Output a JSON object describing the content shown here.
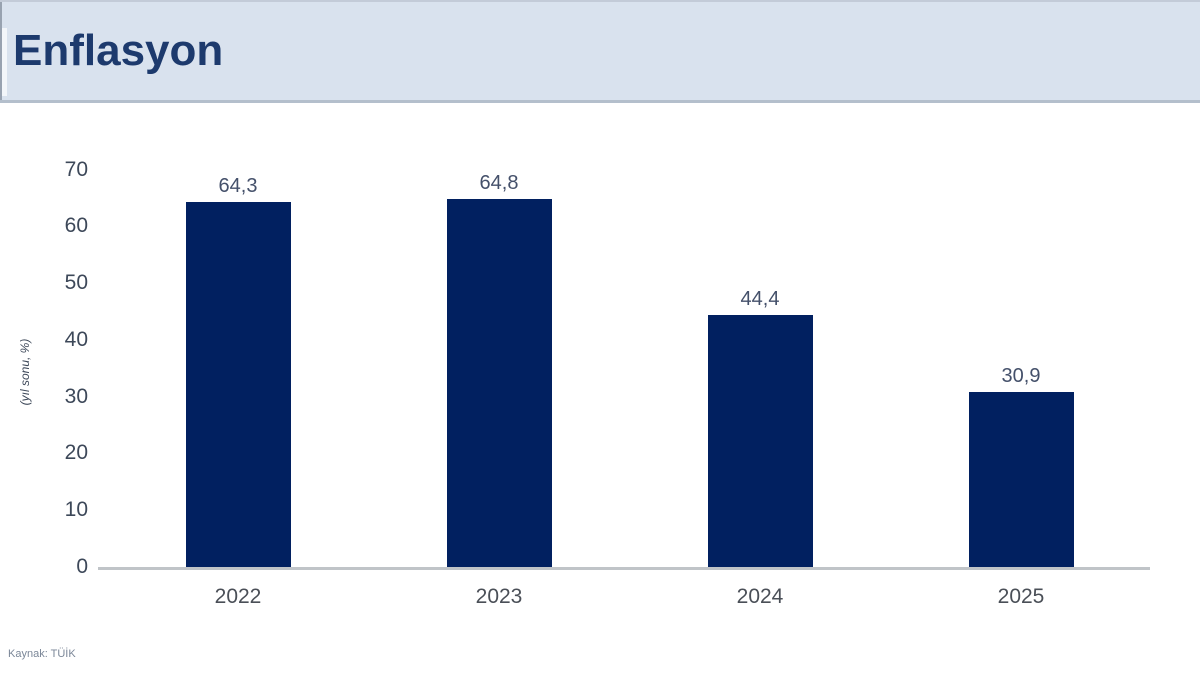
{
  "header": {
    "title": "Enflasyon"
  },
  "chart_data": {
    "type": "bar",
    "title": "Enflasyon",
    "xlabel": "",
    "ylabel": "(yıl sonu, %)",
    "categories": [
      "2022",
      "2023",
      "2024",
      "2025"
    ],
    "values": [
      64.3,
      64.8,
      44.4,
      30.9
    ],
    "value_labels": [
      "64,3",
      "64,8",
      "44,4",
      "30,9"
    ],
    "ylim": [
      0,
      70
    ],
    "yticks": [
      0,
      10,
      20,
      30,
      40,
      50,
      60,
      70
    ],
    "grid": false,
    "legend": "none",
    "bar_color": "#012060"
  },
  "footer": {
    "source": "Kaynak: TÜİK"
  },
  "colors": {
    "header_bg": "#d9e2ee",
    "title_text": "#1d3a6d",
    "bar": "#012060",
    "axis_line": "#c0c4c8",
    "tick_text": "#3d4859",
    "value_text": "#44506a",
    "source_text": "#7b8798"
  }
}
